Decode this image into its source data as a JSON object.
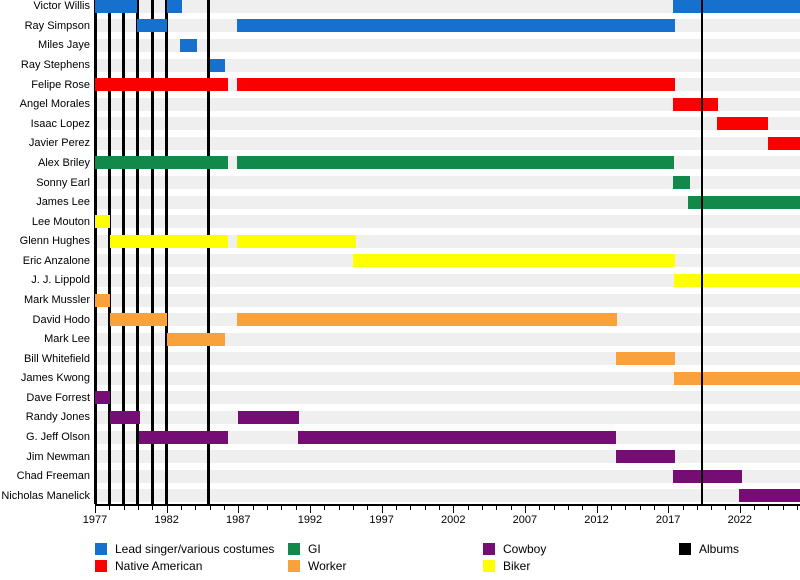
{
  "chart_data": {
    "type": "timeline",
    "x_axis": {
      "start": 1977,
      "end": 2026.2,
      "major_ticks": [
        1977,
        1982,
        1987,
        1992,
        1997,
        2002,
        2007,
        2012,
        2017,
        2022
      ],
      "minor_tick_interval": 1
    },
    "palette": {
      "lead": "#1670cd",
      "native": "#fa0000",
      "gi": "#12894a",
      "worker": "#f9a13a",
      "cowboy": "#750d75",
      "biker": "#ffff00",
      "albums": "#000000"
    },
    "members": [
      {
        "name": "Victor Willis",
        "role": "lead",
        "segments": [
          [
            1977,
            1979.93
          ],
          [
            1982.05,
            1983.05
          ],
          [
            2017.35,
            2026.2
          ]
        ]
      },
      {
        "name": "Ray Simpson",
        "role": "lead",
        "segments": [
          [
            1979.93,
            1982.05
          ],
          [
            1986.9,
            2017.5
          ]
        ]
      },
      {
        "name": "Miles Jaye",
        "role": "lead",
        "segments": [
          [
            1982.95,
            1984.1
          ]
        ]
      },
      {
        "name": "Ray Stephens",
        "role": "lead",
        "segments": [
          [
            1985.0,
            1986.05
          ]
        ]
      },
      {
        "name": "Felipe Rose",
        "role": "native",
        "segments": [
          [
            1977,
            1986.25
          ],
          [
            1986.9,
            2017.5
          ]
        ]
      },
      {
        "name": "Angel Morales",
        "role": "native",
        "segments": [
          [
            2017.35,
            2020.5
          ]
        ]
      },
      {
        "name": "Isaac Lopez",
        "role": "native",
        "segments": [
          [
            2020.4,
            2024.0
          ]
        ]
      },
      {
        "name": "Javier Perez",
        "role": "native",
        "segments": [
          [
            2023.95,
            2026.2
          ]
        ]
      },
      {
        "name": "Alex Briley",
        "role": "gi",
        "segments": [
          [
            1977,
            1986.25
          ],
          [
            1986.9,
            2017.4
          ]
        ]
      },
      {
        "name": "Sonny Earl",
        "role": "gi",
        "segments": [
          [
            2017.35,
            2018.5
          ]
        ]
      },
      {
        "name": "James Lee",
        "role": "gi",
        "segments": [
          [
            2018.4,
            2026.2
          ]
        ]
      },
      {
        "name": "Lee Mouton",
        "role": "biker",
        "segments": [
          [
            1977,
            1978.05
          ]
        ]
      },
      {
        "name": "Glenn Hughes",
        "role": "biker",
        "segments": [
          [
            1978.05,
            1986.25
          ],
          [
            1986.9,
            1995.2
          ]
        ]
      },
      {
        "name": "Eric Anzalone",
        "role": "biker",
        "segments": [
          [
            1995.0,
            2017.5
          ]
        ]
      },
      {
        "name": "J. J. Lippold",
        "role": "biker",
        "segments": [
          [
            2017.4,
            2026.2
          ]
        ]
      },
      {
        "name": "Mark Mussler",
        "role": "worker",
        "segments": [
          [
            1977,
            1978.05
          ]
        ]
      },
      {
        "name": "David Hodo",
        "role": "worker",
        "segments": [
          [
            1978.05,
            1982.05
          ],
          [
            1986.9,
            2013.45
          ]
        ]
      },
      {
        "name": "Mark Lee",
        "role": "worker",
        "segments": [
          [
            1982.05,
            1986.05
          ]
        ]
      },
      {
        "name": "Bill Whitefield",
        "role": "worker",
        "segments": [
          [
            2013.35,
            2017.5
          ]
        ]
      },
      {
        "name": "James Kwong",
        "role": "worker",
        "segments": [
          [
            2017.4,
            2026.2
          ]
        ]
      },
      {
        "name": "Dave Forrest",
        "role": "cowboy",
        "segments": [
          [
            1977,
            1978.05
          ]
        ]
      },
      {
        "name": "Randy Jones",
        "role": "cowboy",
        "segments": [
          [
            1978.05,
            1980.15
          ],
          [
            1986.95,
            1991.25
          ]
        ]
      },
      {
        "name": "G. Jeff Olson",
        "role": "cowboy",
        "segments": [
          [
            1980.1,
            1986.25
          ],
          [
            1991.2,
            2013.35
          ]
        ]
      },
      {
        "name": "Jim Newman",
        "role": "cowboy",
        "segments": [
          [
            2013.35,
            2017.5
          ]
        ]
      },
      {
        "name": "Chad Freeman",
        "role": "cowboy",
        "segments": [
          [
            2017.35,
            2022.15
          ]
        ]
      },
      {
        "name": "Nicholas Manelick",
        "role": "cowboy",
        "segments": [
          [
            2021.95,
            2026.2
          ]
        ]
      }
    ],
    "albums": [
      1977,
      1978,
      1979,
      1980,
      1981,
      1982,
      1984.9,
      2019.35
    ],
    "legend": {
      "columns": [
        {
          "items": [
            {
              "label": "Lead singer/various costumes",
              "key": "lead"
            },
            {
              "label": "Native American",
              "key": "native"
            }
          ]
        },
        {
          "items": [
            {
              "label": "GI",
              "key": "gi"
            },
            {
              "label": "Worker",
              "key": "worker"
            }
          ]
        },
        {
          "items": [
            {
              "label": "Cowboy",
              "key": "cowboy"
            },
            {
              "label": "Biker",
              "key": "biker"
            }
          ]
        },
        {
          "items": [
            {
              "label": "Albums",
              "key": "albums"
            }
          ]
        }
      ]
    }
  }
}
